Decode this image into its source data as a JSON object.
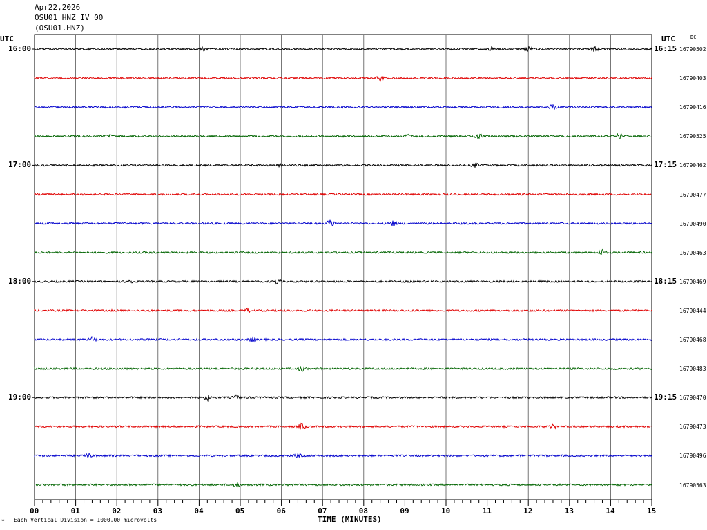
{
  "header": {
    "date": "Apr22,2026",
    "station": "OSU01 HNZ IV 00",
    "code": "(OSU01.HNZ)"
  },
  "left_axis_label": "UTC",
  "right_axis_label": "UTC",
  "dc_label": "DC",
  "colors": {
    "black": "#000000",
    "red": "#e00000",
    "blue": "#0000cc",
    "green": "#006400",
    "grid": "#555555"
  },
  "chart_data": {
    "type": "line",
    "title": "",
    "xlabel": "TIME (MINUTES)",
    "ylabel": "",
    "x_ticks": [
      "00",
      "01",
      "02",
      "03",
      "04",
      "05",
      "06",
      "07",
      "08",
      "09",
      "10",
      "11",
      "12",
      "13",
      "14",
      "15"
    ],
    "xlim": [
      0,
      15
    ],
    "grid": true,
    "footer_note": "Each Vertical Division = 1000.00 microvolts",
    "left_hour_labels": [
      "16:00",
      "17:00",
      "18:00",
      "19:00"
    ],
    "right_hour_labels": [
      "16:15",
      "17:15",
      "18:15",
      "19:15"
    ],
    "trace_colors": [
      "black",
      "red",
      "blue",
      "green"
    ],
    "trace_dc_values": [
      "16790502",
      "16790403",
      "16790416",
      "16790525",
      "16790462",
      "16790477",
      "16790490",
      "16790463",
      "16790469",
      "16790444",
      "16790468",
      "16790483",
      "16790470",
      "16790473",
      "16790496",
      "16790563"
    ],
    "events": [
      {
        "trace": 0,
        "minute": 4.1,
        "amp": 1.2
      },
      {
        "trace": 0,
        "minute": 11.1,
        "amp": 1.4
      },
      {
        "trace": 0,
        "minute": 12.0,
        "amp": 1.6
      },
      {
        "trace": 0,
        "minute": 13.6,
        "amp": 1.5
      },
      {
        "trace": 1,
        "minute": 8.4,
        "amp": 1.8
      },
      {
        "trace": 2,
        "minute": 12.6,
        "amp": 1.6
      },
      {
        "trace": 3,
        "minute": 1.8,
        "amp": 1.3
      },
      {
        "trace": 3,
        "minute": 9.1,
        "amp": 1.4
      },
      {
        "trace": 3,
        "minute": 10.8,
        "amp": 1.5
      },
      {
        "trace": 3,
        "minute": 14.2,
        "amp": 2.2
      },
      {
        "trace": 4,
        "minute": 6.0,
        "amp": 1.4
      },
      {
        "trace": 4,
        "minute": 10.7,
        "amp": 1.3
      },
      {
        "trace": 6,
        "minute": 7.2,
        "amp": 2.8
      },
      {
        "trace": 6,
        "minute": 8.7,
        "amp": 1.8
      },
      {
        "trace": 7,
        "minute": 13.8,
        "amp": 2.0
      },
      {
        "trace": 8,
        "minute": 2.3,
        "amp": 1.4
      },
      {
        "trace": 8,
        "minute": 5.9,
        "amp": 1.6
      },
      {
        "trace": 9,
        "minute": 5.2,
        "amp": 1.2
      },
      {
        "trace": 10,
        "minute": 1.4,
        "amp": 1.6
      },
      {
        "trace": 10,
        "minute": 5.3,
        "amp": 1.3
      },
      {
        "trace": 11,
        "minute": 6.5,
        "amp": 1.8
      },
      {
        "trace": 12,
        "minute": 4.2,
        "amp": 1.6
      },
      {
        "trace": 12,
        "minute": 4.9,
        "amp": 1.4
      },
      {
        "trace": 13,
        "minute": 6.5,
        "amp": 2.4
      },
      {
        "trace": 13,
        "minute": 12.6,
        "amp": 1.8
      },
      {
        "trace": 14,
        "minute": 1.3,
        "amp": 1.4
      },
      {
        "trace": 14,
        "minute": 6.4,
        "amp": 1.3
      },
      {
        "trace": 15,
        "minute": 4.9,
        "amp": 1.6
      }
    ]
  }
}
